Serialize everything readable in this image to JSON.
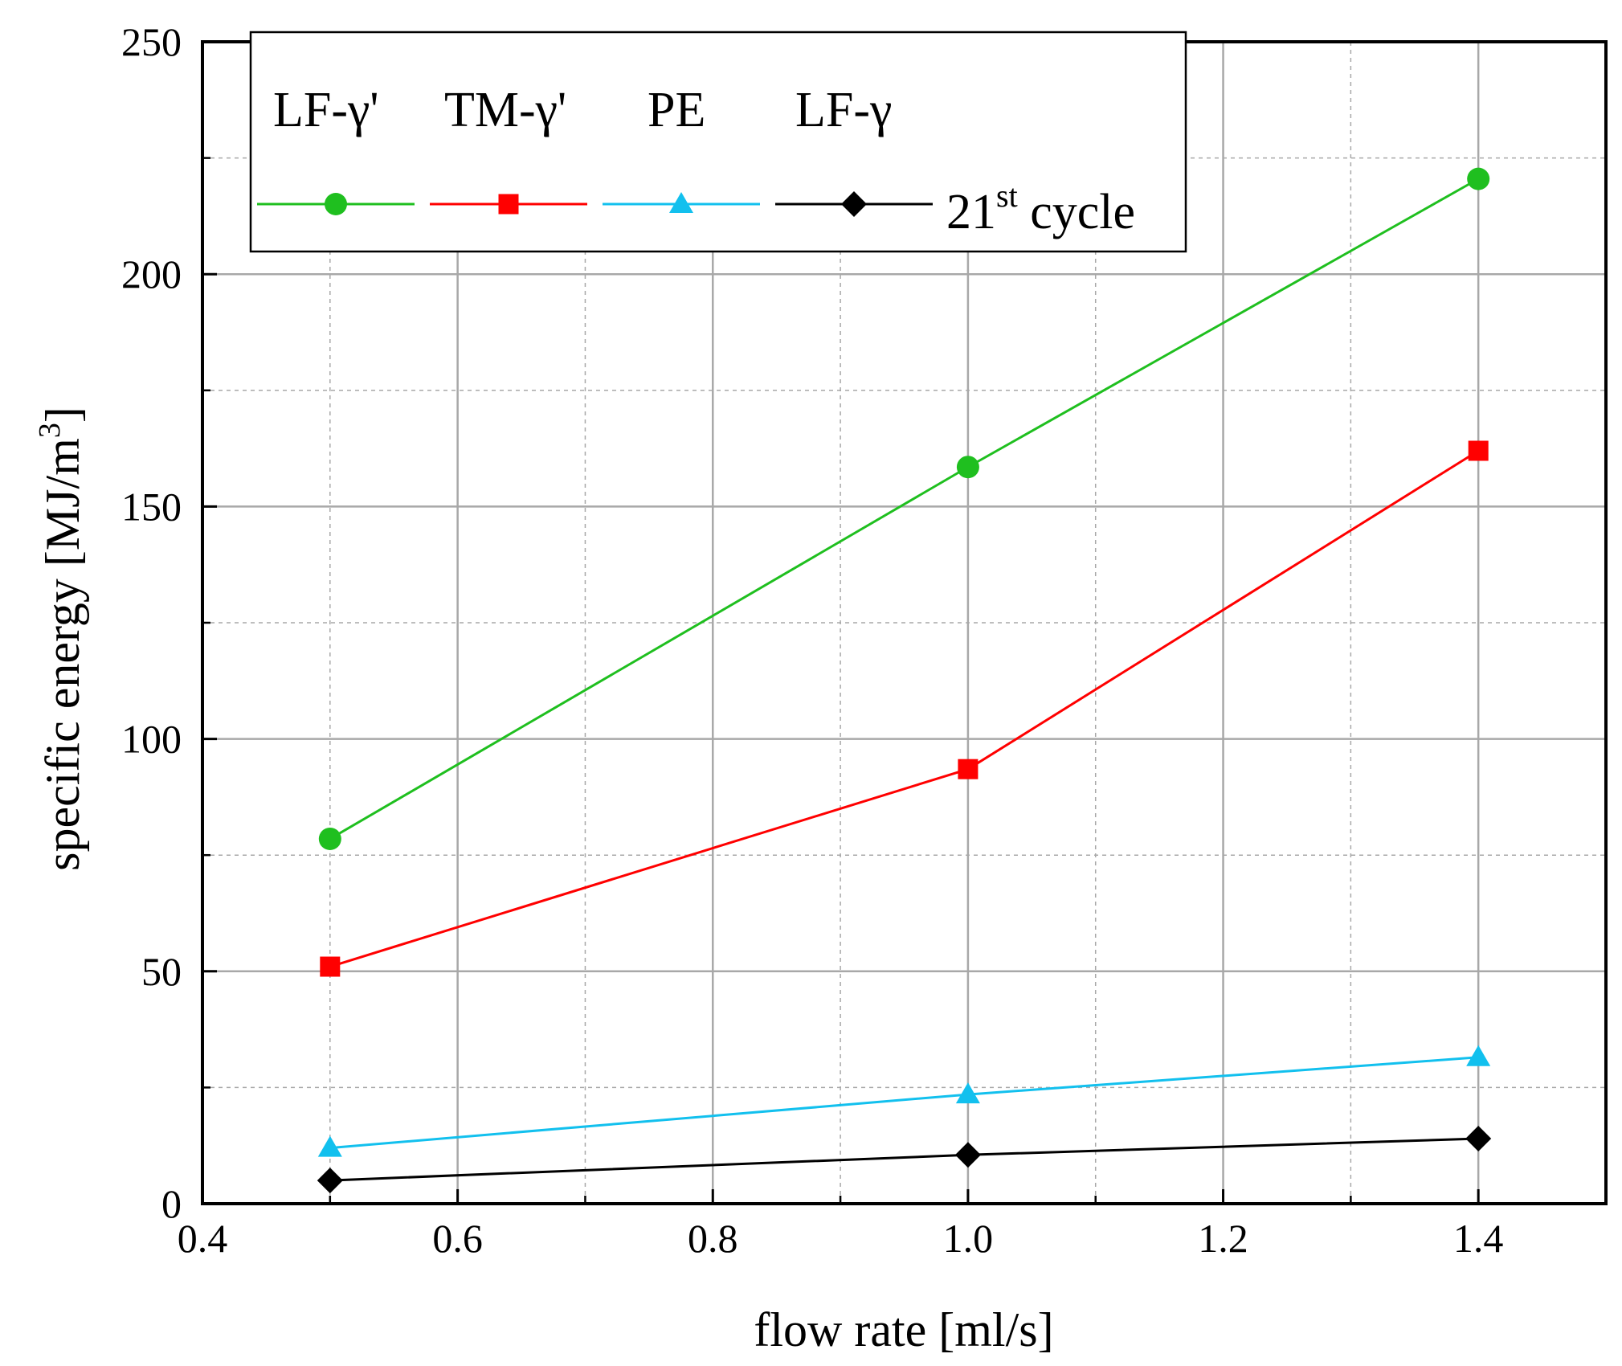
{
  "chart_data": {
    "type": "line",
    "x": [
      0.5,
      1.0,
      1.4
    ],
    "series": [
      {
        "name": "LF-γ'",
        "color": "#1fbf1f",
        "marker": "circle",
        "values": [
          78.5,
          158.5,
          220.5
        ]
      },
      {
        "name": "TM-γ'",
        "color": "#ff0000",
        "marker": "square",
        "values": [
          51,
          93.5,
          162
        ]
      },
      {
        "name": "PE",
        "color": "#12c0ee",
        "marker": "triangle",
        "values": [
          12,
          23.5,
          31.5
        ]
      },
      {
        "name": "LF-γ",
        "color": "#000000",
        "marker": "diamond",
        "values": [
          5,
          10.5,
          14
        ]
      }
    ],
    "legend_note": {
      "base": "21",
      "sup": "st",
      "rest": " cycle"
    },
    "xlabel": "flow rate [ml/s]",
    "ylabel": {
      "base": "specific energy [MJ/m",
      "sup": "3",
      "end": "]"
    },
    "xlim": [
      0.4,
      1.5
    ],
    "ylim": [
      0,
      250
    ],
    "x_ticks": [
      "0.4",
      "0.6",
      "0.8",
      "1.0",
      "1.2",
      "1.4"
    ],
    "y_ticks": [
      "0",
      "50",
      "100",
      "150",
      "200",
      "250"
    ],
    "grid": true,
    "legend_position": "top-left"
  }
}
